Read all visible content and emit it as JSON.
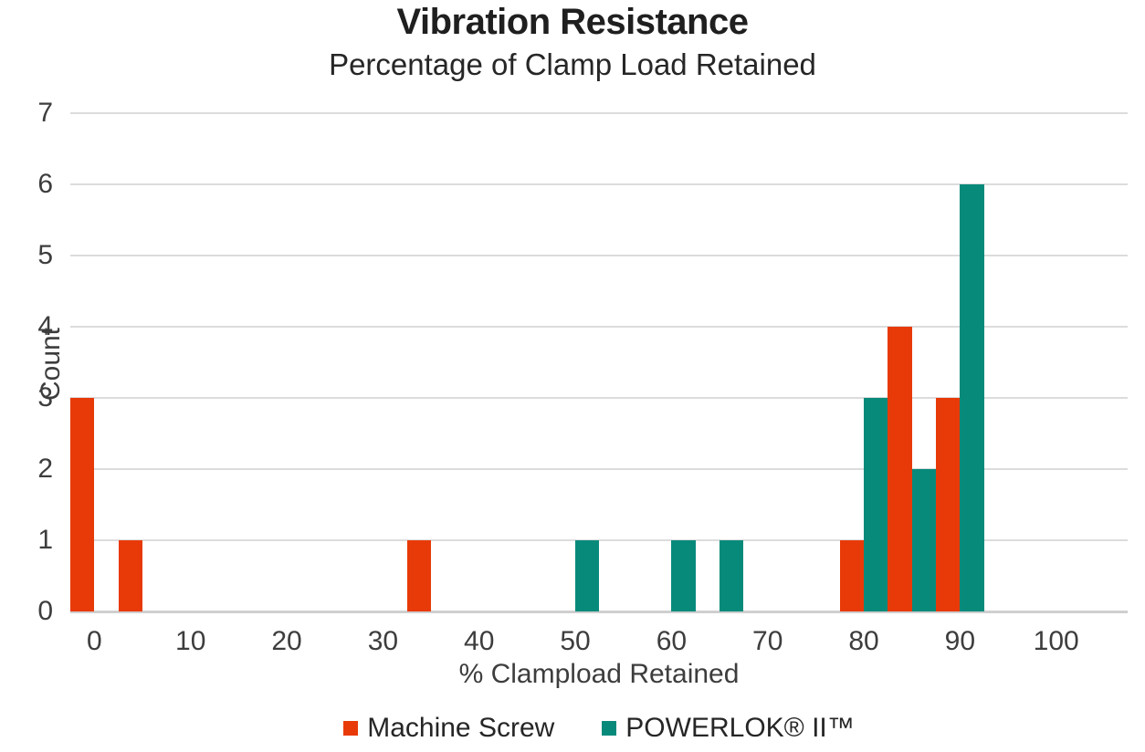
{
  "chart_data": {
    "type": "bar",
    "title": "Vibration Resistance",
    "subtitle": "Percentage of Clamp Load Retained",
    "xlabel": "% Clampload Retained",
    "ylabel": "Count",
    "x_ticks": [
      0,
      10,
      20,
      30,
      40,
      50,
      60,
      70,
      80,
      90,
      100
    ],
    "y_ticks": [
      0,
      1,
      2,
      3,
      4,
      5,
      6,
      7
    ],
    "ylim": [
      0,
      7
    ],
    "xlim": [
      -2.5,
      107.5
    ],
    "bin_width": 5,
    "grid": true,
    "legend_position": "bottom",
    "colors": {
      "machine_screw": "#e83a08",
      "powerlok": "#088a7b",
      "gridline": "#dcdcdc",
      "axis_text": "#3d3d3d",
      "title_text": "#1f1f1f"
    },
    "series": [
      {
        "name": "Machine Screw",
        "color": "#e83a08",
        "points": [
          {
            "x": 0,
            "count": 3
          },
          {
            "x": 5,
            "count": 1
          },
          {
            "x": 35,
            "count": 1
          },
          {
            "x": 80,
            "count": 1
          },
          {
            "x": 85,
            "count": 4
          },
          {
            "x": 90,
            "count": 3
          }
        ]
      },
      {
        "name": "POWERLOK® II™",
        "color": "#088a7b",
        "points": [
          {
            "x": 50,
            "count": 1
          },
          {
            "x": 60,
            "count": 1
          },
          {
            "x": 65,
            "count": 1
          },
          {
            "x": 80,
            "count": 3
          },
          {
            "x": 85,
            "count": 2
          },
          {
            "x": 90,
            "count": 6
          }
        ]
      }
    ]
  }
}
